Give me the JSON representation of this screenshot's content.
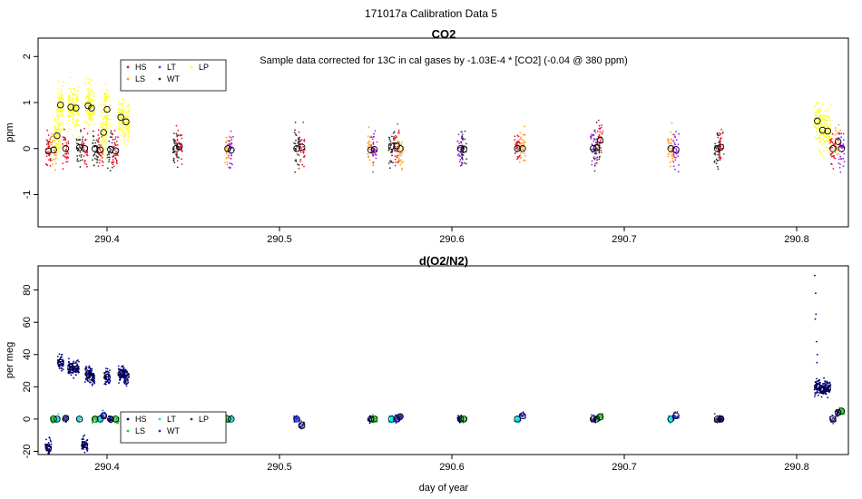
{
  "title": "171017a   Calibration Data 5",
  "colors": {
    "HS": "#e8162b",
    "LS": "#ff9e1a",
    "LT": "#a020f0",
    "WT": "#333333",
    "LP": "#ffff33",
    "HS_o2": "#000080",
    "LS_o2": "#22cc22",
    "LT_o2": "#00e5e5",
    "WT_o2": "#2b2bff",
    "LP_o2": "#303090"
  },
  "chart_data": [
    {
      "type": "scatter",
      "title": "CO2",
      "annotation": "Sample data corrected for 13C in cal gases by -1.03E-4 * [CO2] (-0.04 @ 380 ppm)",
      "xlabel": "",
      "ylabel": "ppm",
      "xlim": [
        290.36,
        290.83
      ],
      "ylim": [
        -1.7,
        2.4
      ],
      "xticks": [
        290.4,
        290.5,
        290.6,
        290.7,
        290.8
      ],
      "yticks": [
        -1,
        0,
        1,
        2
      ],
      "legend": {
        "position": "top-left",
        "entries": [
          "HS",
          "LS",
          "LT",
          "WT",
          "LP"
        ]
      },
      "means": [
        [
          290.366,
          -0.05
        ],
        [
          290.369,
          -0.03
        ],
        [
          290.371,
          0.28
        ],
        [
          290.373,
          0.95
        ],
        [
          290.376,
          0.0
        ],
        [
          290.379,
          0.9
        ],
        [
          290.382,
          0.88
        ],
        [
          290.384,
          0.02
        ],
        [
          290.387,
          0.0
        ],
        [
          290.389,
          0.93
        ],
        [
          290.391,
          0.88
        ],
        [
          290.393,
          0.0
        ],
        [
          290.396,
          -0.03
        ],
        [
          290.398,
          0.35
        ],
        [
          290.4,
          0.85
        ],
        [
          290.402,
          -0.02
        ],
        [
          290.405,
          -0.05
        ],
        [
          290.408,
          0.68
        ],
        [
          290.411,
          0.58
        ],
        [
          290.44,
          0.0
        ],
        [
          290.442,
          0.05
        ],
        [
          290.47,
          0.0
        ],
        [
          290.472,
          -0.03
        ],
        [
          290.51,
          0.0
        ],
        [
          290.513,
          0.03
        ],
        [
          290.553,
          -0.03
        ],
        [
          290.555,
          -0.02
        ],
        [
          290.565,
          0.05
        ],
        [
          290.568,
          0.06
        ],
        [
          290.57,
          0.0
        ],
        [
          290.605,
          0.0
        ],
        [
          290.607,
          -0.01
        ],
        [
          290.638,
          0.0
        ],
        [
          290.641,
          0.0
        ],
        [
          290.682,
          0.0
        ],
        [
          290.684,
          0.02
        ],
        [
          290.686,
          0.18
        ],
        [
          290.727,
          0.0
        ],
        [
          290.73,
          -0.02
        ],
        [
          290.754,
          0.0
        ],
        [
          290.756,
          0.03
        ],
        [
          290.812,
          0.6
        ],
        [
          290.815,
          0.4
        ],
        [
          290.818,
          0.38
        ],
        [
          290.821,
          0.0
        ],
        [
          290.824,
          0.15
        ],
        [
          290.826,
          0.0
        ]
      ]
    },
    {
      "type": "scatter",
      "title": "d(O2/N2)",
      "xlabel": "day of year",
      "ylabel": "per meg",
      "xlim": [
        290.36,
        290.83
      ],
      "ylim": [
        -22,
        95
      ],
      "xticks": [
        290.4,
        290.5,
        290.6,
        290.7,
        290.8
      ],
      "yticks": [
        -20,
        0,
        20,
        40,
        60,
        80
      ],
      "legend": {
        "position": "bottom-left",
        "entries": [
          "HS",
          "LS",
          "LT",
          "WT",
          "LP"
        ]
      },
      "means": [
        [
          290.366,
          -18
        ],
        [
          290.369,
          0.0
        ],
        [
          290.371,
          0.0
        ],
        [
          290.373,
          35
        ],
        [
          290.376,
          0.5
        ],
        [
          290.379,
          32
        ],
        [
          290.382,
          31
        ],
        [
          290.384,
          0.0
        ],
        [
          290.387,
          -16
        ],
        [
          290.389,
          28
        ],
        [
          290.391,
          26
        ],
        [
          290.393,
          0.0
        ],
        [
          290.396,
          0.0
        ],
        [
          290.398,
          2.0
        ],
        [
          290.4,
          26
        ],
        [
          290.402,
          0.0
        ],
        [
          290.405,
          0.0
        ],
        [
          290.408,
          28
        ],
        [
          290.411,
          27
        ],
        [
          290.44,
          0.0
        ],
        [
          290.442,
          0.0
        ],
        [
          290.47,
          0.0
        ],
        [
          290.472,
          0.0
        ],
        [
          290.51,
          0.0
        ],
        [
          290.513,
          -4.0
        ],
        [
          290.553,
          0.0
        ],
        [
          290.555,
          0.0
        ],
        [
          290.565,
          0.0
        ],
        [
          290.568,
          0.0
        ],
        [
          290.57,
          1.5
        ],
        [
          290.605,
          0.0
        ],
        [
          290.607,
          0.0
        ],
        [
          290.638,
          0.0
        ],
        [
          290.641,
          2.0
        ],
        [
          290.682,
          0.0
        ],
        [
          290.684,
          0.0
        ],
        [
          290.686,
          1.5
        ],
        [
          290.727,
          0.0
        ],
        [
          290.73,
          2.0
        ],
        [
          290.754,
          0.0
        ],
        [
          290.756,
          0.0
        ],
        [
          290.812,
          20
        ],
        [
          290.815,
          18
        ],
        [
          290.818,
          19
        ],
        [
          290.821,
          0.0
        ],
        [
          290.824,
          4.0
        ],
        [
          290.826,
          5.0
        ]
      ]
    }
  ]
}
